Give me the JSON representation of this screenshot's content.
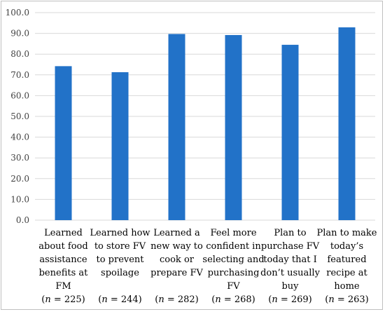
{
  "chart_data": {
    "type": "bar",
    "categories": [
      [
        "Learned",
        "about food",
        "assistance",
        "benefits at",
        "FM"
      ],
      [
        "Learned how",
        "to store FV",
        "to prevent",
        "spoilage"
      ],
      [
        "Learned a",
        "new way to",
        "cook or",
        "prepare FV"
      ],
      [
        "Feel more",
        "confident in",
        "selecting and",
        "purchasing",
        "FV"
      ],
      [
        "Plan to",
        "purchase FV",
        "today that I",
        "don’t usually",
        "buy"
      ],
      [
        "Plan to make",
        "today’s",
        "featured",
        "recipe at",
        "home"
      ]
    ],
    "sample_sizes": [
      {
        "n_symbol": "n",
        "rest": " = 225)"
      },
      {
        "n_symbol": "n",
        "rest": " = 244)"
      },
      {
        "n_symbol": "n",
        "rest": " = 282)"
      },
      {
        "n_symbol": "n",
        "rest": " = 268)"
      },
      {
        "n_symbol": "n",
        "rest": " = 269)"
      },
      {
        "n_symbol": "n",
        "rest": " = 263)"
      }
    ],
    "values": [
      74.2,
      71.3,
      89.7,
      89.2,
      84.5,
      92.9
    ],
    "ylim": [
      0,
      100
    ],
    "yticks": [
      "0.0",
      "10.0",
      "20.0",
      "30.0",
      "40.0",
      "50.0",
      "60.0",
      "70.0",
      "80.0",
      "90.0",
      "100.0"
    ],
    "grid": true,
    "colors": {
      "bar": "#2272c8",
      "grid": "#d9d9d9"
    }
  }
}
